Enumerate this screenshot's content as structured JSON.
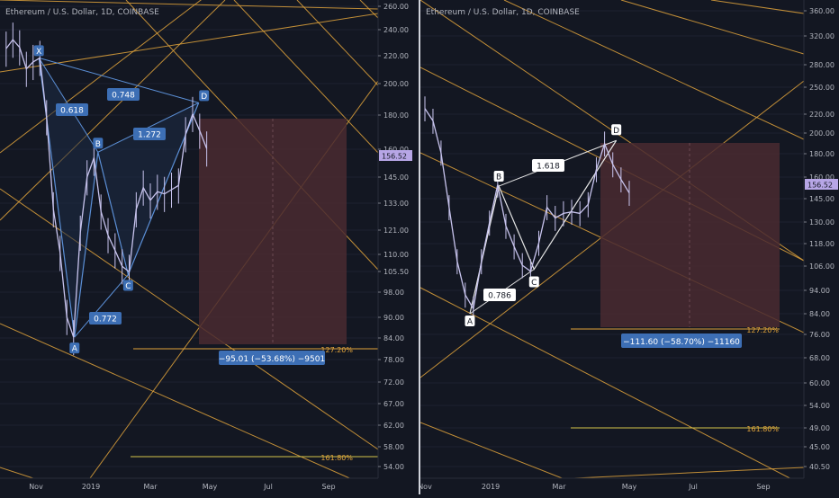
{
  "colors": {
    "bg": "#131722",
    "axis_text": "#b2b5be",
    "grid": "#1c2030",
    "fib_line": "#e0a33b",
    "pattern_line": "#5b8fd6",
    "pattern_fill": "#1e2b45",
    "pattern_line_right": "#e6e6e6",
    "target_zone": "#4a2a30",
    "label_bg": "#3d6fb5",
    "candle": "#c8c4ee",
    "price_tag": "#b7a6e6"
  },
  "panels": [
    {
      "title": "Ethereum / U.S. Dollar, 1D, COINBASE",
      "chart_data": {
        "type": "line",
        "title": "Ethereum / U.S. Dollar, 1D, COINBASE",
        "xlabel": "",
        "ylabel": "",
        "x_ticks": [
          "Nov",
          "2019",
          "Mar",
          "May",
          "Jul",
          "Sep"
        ],
        "y_ticks": [
          "260.00",
          "240.00",
          "220.00",
          "200.00",
          "180.00",
          "160.00",
          "145.00",
          "133.00",
          "121.00",
          "110.00",
          "105.50",
          "98.00",
          "90.00",
          "84.00",
          "78.00",
          "72.00",
          "67.00",
          "62.00",
          "58.00",
          "54.00"
        ],
        "current_price": "156.52",
        "series": [
          {
            "x": [
              "Oct 5",
              "Oct 12",
              "Oct 19",
              "Oct 26",
              "Nov 2",
              "Nov 9",
              "Nov 16",
              "Nov 23",
              "Nov 30",
              "Dec 7",
              "Dec 14",
              "Dec 21",
              "Dec 28",
              "Jan 4",
              "Jan 11",
              "Jan 18",
              "Jan 25",
              "Feb 1",
              "Feb 8",
              "Feb 15",
              "Feb 22",
              "Mar 1",
              "Mar 8",
              "Mar 15",
              "Mar 22",
              "Mar 29",
              "Apr 5",
              "Apr 12",
              "Apr 19",
              "Apr 26"
            ],
            "values": [
              225,
              232,
              226,
              210,
              215,
              218,
              178,
              130,
              112,
              90,
              84,
              120,
              145,
              155,
              129,
              119,
              113,
              107,
              105,
              130,
              140,
              134,
              138,
              137,
              139,
              141,
              168,
              180,
              170,
              160
            ]
          }
        ],
        "pattern": {
          "points": [
            {
              "label": "X",
              "date": "Nov 8",
              "price": 218
            },
            {
              "label": "A",
              "date": "Dec 15",
              "price": 84
            },
            {
              "label": "B",
              "date": "Jan 8",
              "price": 158
            },
            {
              "label": "C",
              "date": "Feb 7",
              "price": 104
            },
            {
              "label": "D",
              "date": "Apr 18",
              "price": 187
            }
          ],
          "ratios": [
            "0.618",
            "0.748",
            "1.272",
            "0.772"
          ]
        },
        "levels": [
          {
            "label": "127.20%",
            "price": 83
          },
          {
            "label": "161.80%",
            "price": 57
          }
        ],
        "measure": "−95.01 (−53.68%) −9501"
      }
    },
    {
      "title": "Ethereum / U.S. Dollar, 1D, COINBASE",
      "chart_data": {
        "type": "line",
        "title": "Ethereum / U.S. Dollar, 1D, COINBASE",
        "xlabel": "",
        "ylabel": "",
        "x_ticks": [
          "Nov",
          "2019",
          "Mar",
          "May",
          "Jul",
          "Sep"
        ],
        "y_ticks": [
          "360.00",
          "320.00",
          "280.00",
          "250.00",
          "220.00",
          "200.00",
          "180.00",
          "160.00",
          "145.00",
          "130.00",
          "118.00",
          "106.00",
          "94.00",
          "84.00",
          "76.00",
          "68.00",
          "60.00",
          "54.00",
          "49.00",
          "45.00",
          "40.50"
        ],
        "current_price": "156.52",
        "series": [
          {
            "x": [
              "Nov 5",
              "Nov 12",
              "Nov 19",
              "Nov 26",
              "Dec 3",
              "Dec 10",
              "Dec 17",
              "Dec 24",
              "Dec 31",
              "Jan 7",
              "Jan 14",
              "Jan 21",
              "Jan 28",
              "Feb 4",
              "Feb 11",
              "Feb 18",
              "Feb 25",
              "Mar 4",
              "Mar 11",
              "Mar 18",
              "Mar 25",
              "Apr 1",
              "Apr 8",
              "Apr 15",
              "Apr 22",
              "Apr 29"
            ],
            "values": [
              225,
              212,
              182,
              140,
              108,
              92,
              86,
              108,
              130,
              156,
              128,
              116,
              106,
              103,
              118,
              140,
              133,
              136,
              137,
              136,
              142,
              168,
              190,
              172,
              160,
              150
            ]
          }
        ],
        "pattern": {
          "points": [
            {
              "label": "A",
              "date": "Dec 14",
              "price": 84
            },
            {
              "label": "B",
              "date": "Jan 8",
              "price": 155
            },
            {
              "label": "C",
              "date": "Feb 7",
              "price": 104
            },
            {
              "label": "D",
              "date": "Apr 18",
              "price": 193
            }
          ],
          "ratios": [
            "1.618",
            "0.786"
          ]
        },
        "levels": [
          {
            "label": "127.20%",
            "price": 79
          },
          {
            "label": "161.80%",
            "price": 49
          }
        ],
        "measure": "−111.60 (−58.70%) −11160"
      }
    }
  ]
}
